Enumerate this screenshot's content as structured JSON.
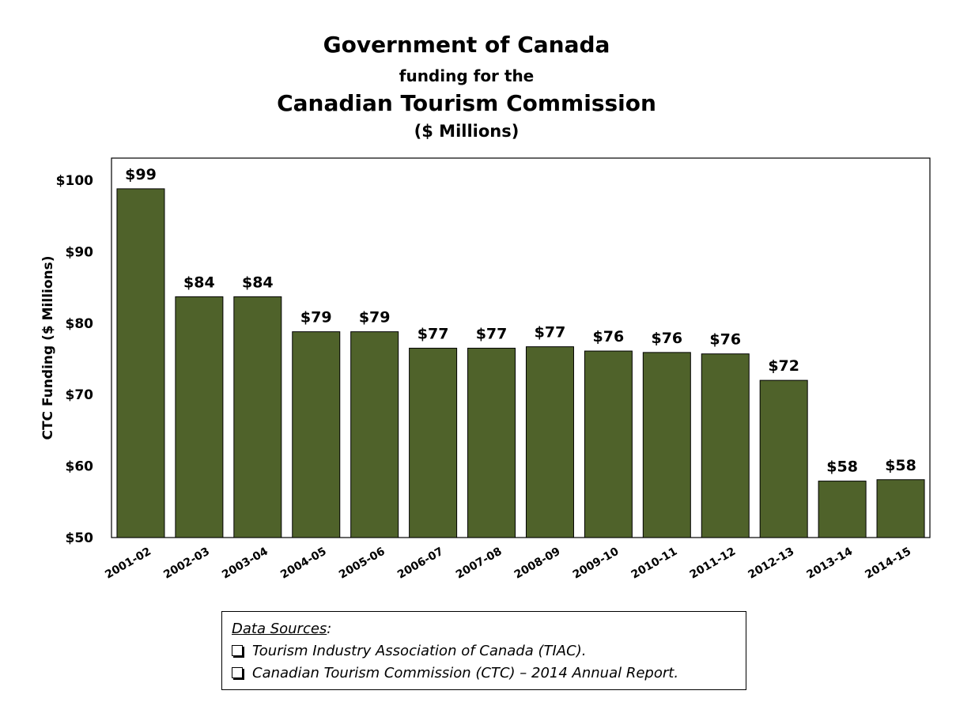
{
  "chart_data": {
    "type": "bar",
    "title": "Government of Canada",
    "subtitle_lines": [
      "funding for the",
      "Canadian Tourism Commission",
      "($ Millions)"
    ],
    "xlabel": "",
    "ylabel": "CTC Funding  ($ Millions)",
    "ylim": [
      50,
      102.5
    ],
    "yticks": [
      50,
      60,
      70,
      80,
      90,
      100
    ],
    "ytick_labels": [
      "$50",
      "$60",
      "$70",
      "$80",
      "$90",
      "$100"
    ],
    "grid": false,
    "bar_color": "#4f622a",
    "categories": [
      "2001-02",
      "2002-03",
      "2003-04",
      "2004-05",
      "2005-06",
      "2006-07",
      "2007-08",
      "2008-09",
      "2009-10",
      "2010-11",
      "2011-12",
      "2012-13",
      "2013-14",
      "2014-15"
    ],
    "values": [
      98.8,
      83.7,
      83.7,
      78.8,
      78.8,
      76.5,
      76.5,
      76.7,
      76.1,
      75.9,
      75.7,
      72.0,
      57.9,
      58.1
    ],
    "data_labels": [
      "$99",
      "$84",
      "$84",
      "$79",
      "$79",
      "$77",
      "$77",
      "$77",
      "$76",
      "$76",
      "$76",
      "$72",
      "$58",
      "$58"
    ]
  },
  "sources": {
    "heading": "Data Sources",
    "heading_suffix": ":",
    "items": [
      "Tourism Industry Association of Canada (TIAC).",
      "Canadian Tourism Commission (CTC) – 2014 Annual Report."
    ]
  }
}
